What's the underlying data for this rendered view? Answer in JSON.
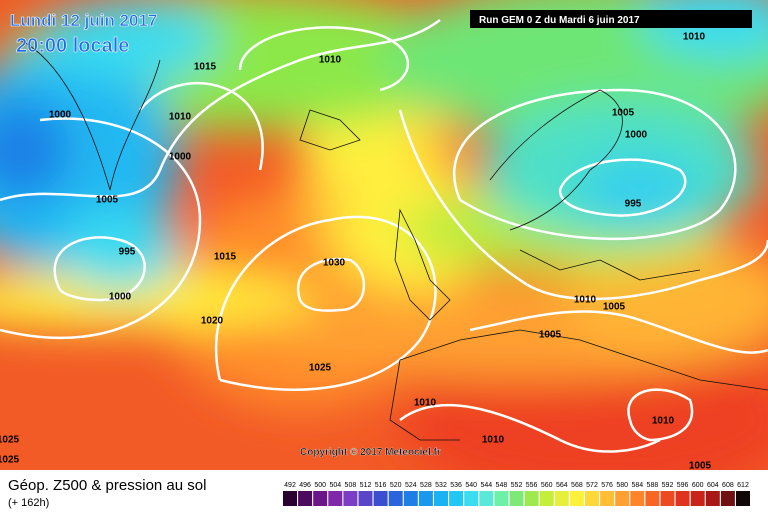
{
  "header": {
    "date": "Lundi 12 juin 2017",
    "time": "20:00 locale",
    "run": "Run GEM 0 Z du Mardi 6 juin 2017"
  },
  "isobars": [
    "1015",
    "1010",
    "1010",
    "1000",
    "1010",
    "1000",
    "1005",
    "995",
    "1000",
    "1015",
    "1020",
    "1030",
    "1025",
    "1005",
    "1000",
    "995",
    "1010",
    "1005",
    "1005",
    "1010",
    "1010",
    "1010",
    "1005",
    "1025",
    "1025"
  ],
  "copyright": "Copyright © 2017 Meteociel.fr",
  "footer": {
    "title": "Géop. Z500 & pression au sol",
    "subtitle": "(+ 162h)"
  },
  "legend": {
    "values": [
      492,
      496,
      500,
      504,
      508,
      512,
      516,
      520,
      524,
      528,
      532,
      536,
      540,
      544,
      548,
      552,
      556,
      560,
      564,
      568,
      572,
      576,
      580,
      584,
      588,
      592,
      596,
      600,
      604,
      608,
      612
    ],
    "colors": [
      "#2a0030",
      "#4b0a5e",
      "#6a1688",
      "#7e2aa8",
      "#7a3ec4",
      "#5a44c8",
      "#3a4ed0",
      "#2a64dc",
      "#1e7ee6",
      "#1a98ee",
      "#1ab2f2",
      "#22c8f4",
      "#3adcf0",
      "#5ae8d8",
      "#6ef0a8",
      "#7ee878",
      "#9eea4e",
      "#c4ee3a",
      "#e6f03a",
      "#fff03c",
      "#ffd83a",
      "#ffbe36",
      "#ffa030",
      "#ff842a",
      "#f86626",
      "#ee4a22",
      "#e0321e",
      "#c8241a",
      "#a81814",
      "#701010",
      "#100808"
    ]
  }
}
